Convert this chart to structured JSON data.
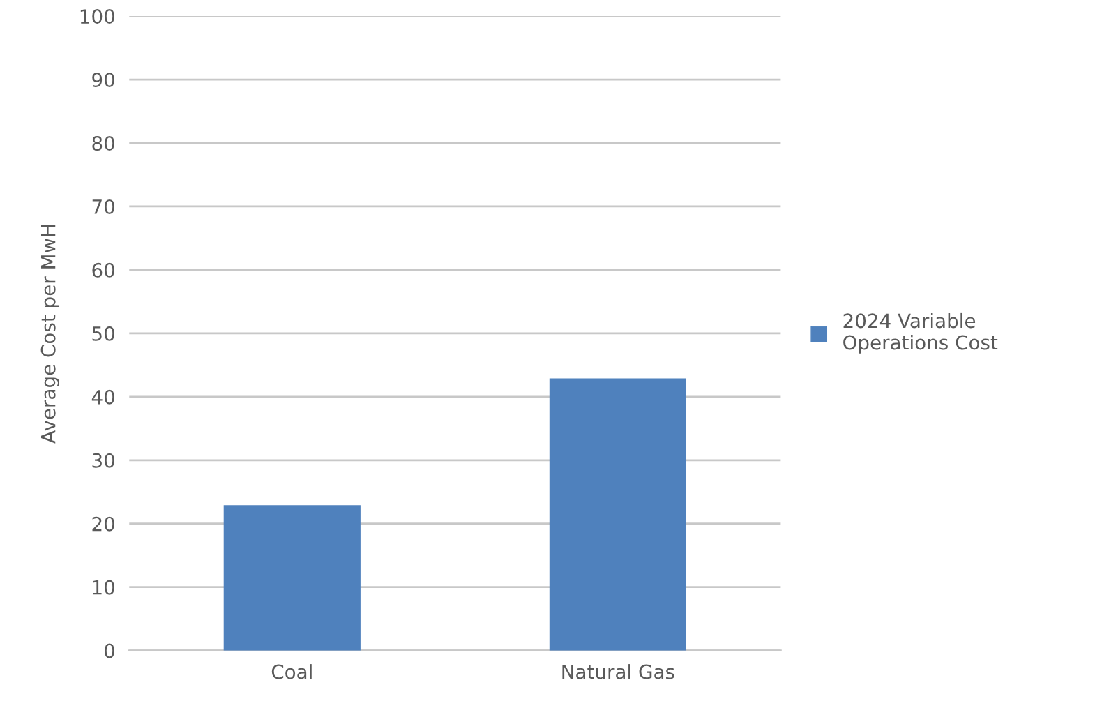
{
  "chart_data": {
    "type": "bar",
    "ylabel": "Average Cost per MwH",
    "categories": [
      "Coal",
      "Natural Gas"
    ],
    "series": [
      {
        "name": "2024 Variable Operations Cost",
        "color": "#4f81bd",
        "values": [
          22.9,
          42.9
        ]
      }
    ],
    "ylim": [
      0,
      100
    ],
    "yticks": [
      0,
      10,
      20,
      30,
      40,
      50,
      60,
      70,
      80,
      90,
      100
    ],
    "grid": "y",
    "legend": "right"
  }
}
